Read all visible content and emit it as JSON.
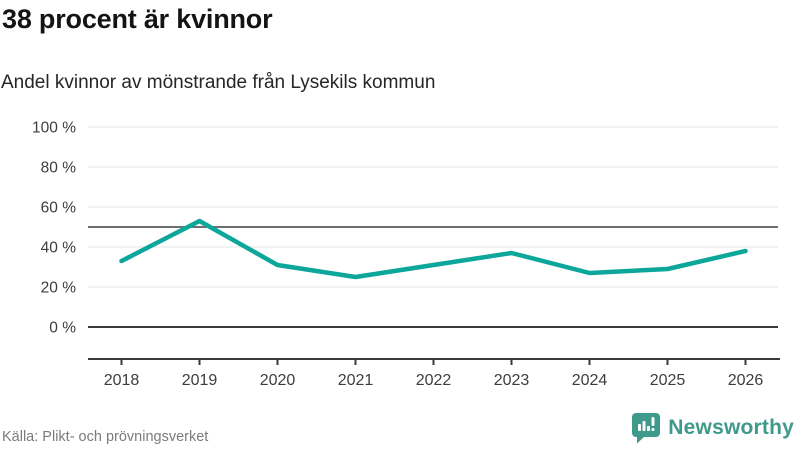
{
  "header": {
    "title": "38 procent är kvinnor",
    "subtitle": "Andel kvinnor av mönstrande från Lysekils kommun"
  },
  "chart_data": {
    "type": "line",
    "title": "38 procent är kvinnor",
    "subtitle": "Andel kvinnor av mönstrande från Lysekils kommun",
    "categories": [
      "2018",
      "2019",
      "2020",
      "2021",
      "2022",
      "2023",
      "2024",
      "2025",
      "2026"
    ],
    "series": [
      {
        "name": "Andel kvinnor av mönstrande",
        "values": [
          33,
          53,
          31,
          25,
          31,
          37,
          27,
          29,
          38
        ]
      }
    ],
    "ylim": [
      0,
      100
    ],
    "yticks": [
      0,
      20,
      40,
      60,
      80,
      100
    ],
    "ytick_labels": [
      "0 %",
      "20 %",
      "40 %",
      "60 %",
      "80 %",
      "100 %"
    ],
    "unit": "%",
    "reference_line": 50,
    "grid": true,
    "legend_position": "none",
    "line_color": "#0ca69b",
    "gridline_color": "#e3e3e3",
    "reference_line_color": "#6e6e6e",
    "axis_color": "#3a3a3a",
    "tick_label_color": "#3d3d3d"
  },
  "footer": {
    "source": "Källa: Plikt- och prövningsverket",
    "brand": "Newsworthy",
    "brand_color": "#3f9a8c"
  }
}
